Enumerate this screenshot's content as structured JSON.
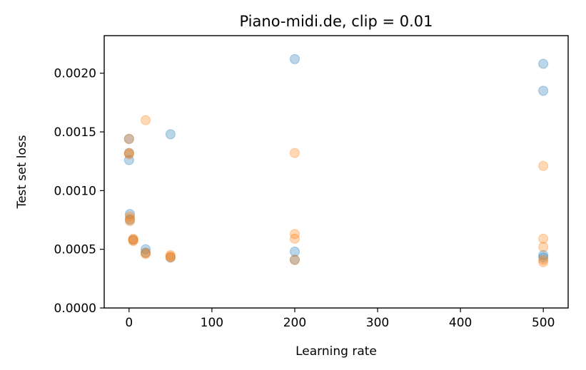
{
  "chart_data": {
    "type": "scatter",
    "title": "Piano-midi.de, clip = 0.01",
    "xlabel": "Learning rate",
    "ylabel": "Test set loss",
    "xlim": [
      -30,
      530
    ],
    "ylim": [
      0,
      0.00232
    ],
    "xticks": [
      0,
      100,
      200,
      300,
      400,
      500
    ],
    "xtick_labels": [
      "0",
      "100",
      "200",
      "300",
      "400",
      "500"
    ],
    "yticks": [
      0,
      0.0005,
      0.001,
      0.0015,
      0.002
    ],
    "ytick_labels": [
      "0.0000",
      "0.0005",
      "0.0010",
      "0.0015",
      "0.0020"
    ],
    "grid": false,
    "series": [
      {
        "color": "#1f77b4",
        "alpha": 0.3,
        "points": [
          {
            "x": 0,
            "y": 0.00144
          },
          {
            "x": 0,
            "y": 0.00132
          },
          {
            "x": 0,
            "y": 0.00126
          },
          {
            "x": 1,
            "y": 0.0008
          },
          {
            "x": 1,
            "y": 0.00075
          },
          {
            "x": 5,
            "y": 0.00058
          },
          {
            "x": 20,
            "y": 0.0005
          },
          {
            "x": 20,
            "y": 0.00047
          },
          {
            "x": 50,
            "y": 0.00148
          },
          {
            "x": 50,
            "y": 0.00043
          },
          {
            "x": 200,
            "y": 0.00212
          },
          {
            "x": 200,
            "y": 0.00048
          },
          {
            "x": 200,
            "y": 0.00041
          },
          {
            "x": 500,
            "y": 0.00208
          },
          {
            "x": 500,
            "y": 0.00185
          },
          {
            "x": 500,
            "y": 0.00045
          },
          {
            "x": 500,
            "y": 0.00043
          }
        ]
      },
      {
        "color": "#ff7f0e",
        "alpha": 0.3,
        "points": [
          {
            "x": 0,
            "y": 0.00144
          },
          {
            "x": 0,
            "y": 0.00132
          },
          {
            "x": 0,
            "y": 0.00131
          },
          {
            "x": 1,
            "y": 0.00078
          },
          {
            "x": 1,
            "y": 0.00076
          },
          {
            "x": 1,
            "y": 0.00074
          },
          {
            "x": 5,
            "y": 0.00059
          },
          {
            "x": 5,
            "y": 0.00058
          },
          {
            "x": 5,
            "y": 0.00057
          },
          {
            "x": 20,
            "y": 0.0016
          },
          {
            "x": 20,
            "y": 0.00047
          },
          {
            "x": 20,
            "y": 0.00046
          },
          {
            "x": 50,
            "y": 0.00045
          },
          {
            "x": 50,
            "y": 0.00044
          },
          {
            "x": 50,
            "y": 0.00043
          },
          {
            "x": 200,
            "y": 0.00132
          },
          {
            "x": 200,
            "y": 0.00063
          },
          {
            "x": 200,
            "y": 0.00059
          },
          {
            "x": 200,
            "y": 0.00041
          },
          {
            "x": 500,
            "y": 0.00121
          },
          {
            "x": 500,
            "y": 0.00059
          },
          {
            "x": 500,
            "y": 0.00052
          },
          {
            "x": 500,
            "y": 0.00041
          },
          {
            "x": 500,
            "y": 0.00039
          }
        ]
      }
    ]
  }
}
